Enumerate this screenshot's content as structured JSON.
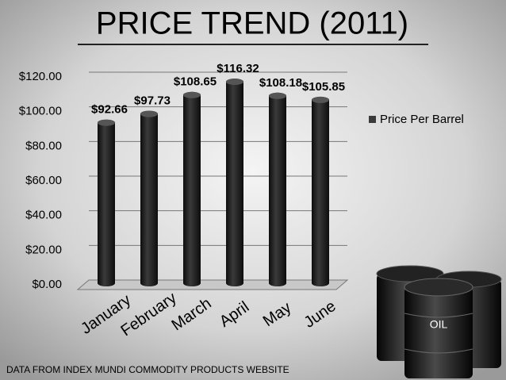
{
  "chart_data": {
    "type": "bar",
    "title": "PRICE TREND (2011)",
    "categories": [
      "January",
      "February",
      "March",
      "April",
      "May",
      "June"
    ],
    "series": [
      {
        "name": "Price Per Barrel",
        "color": "#3a3a3a",
        "values": [
          92.66,
          97.73,
          108.65,
          116.32,
          108.18,
          105.85
        ],
        "value_labels": [
          "$92.66",
          "$97.73",
          "$108.65",
          "$116.32",
          "$108.18",
          "$105.85"
        ]
      }
    ],
    "ylim": [
      0,
      120
    ],
    "yticks": [
      {
        "value": 0,
        "label": "$0.00"
      },
      {
        "value": 20,
        "label": "$20.00"
      },
      {
        "value": 40,
        "label": "$40.00"
      },
      {
        "value": 60,
        "label": "$60.00"
      },
      {
        "value": 80,
        "label": "$80.00"
      },
      {
        "value": 100,
        "label": "$100.00"
      },
      {
        "value": 120,
        "label": "$120.00"
      }
    ],
    "grid": true,
    "legend": "right",
    "source": "DATA  FROM INDEX MUNDI COMMODITY PRODUCTS WEBSITE",
    "image_label": "OIL"
  }
}
